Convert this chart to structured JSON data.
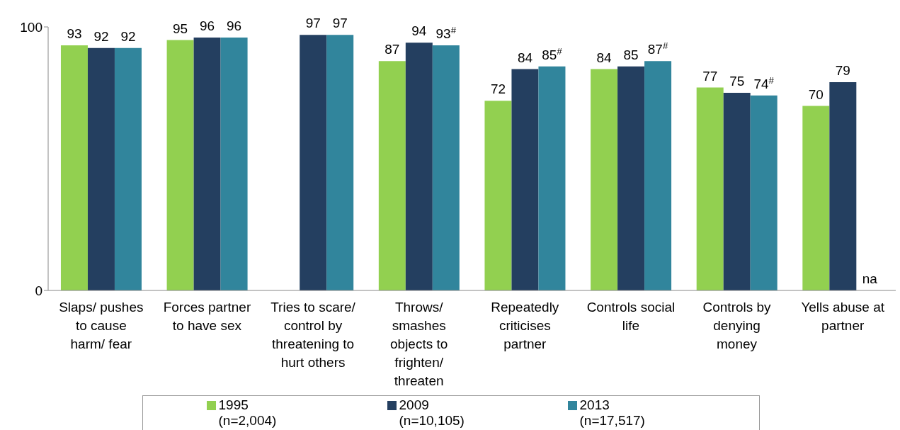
{
  "chart_data": {
    "type": "bar",
    "categories": [
      "Slaps/ pushes\nto cause\nharm/ fear",
      "Forces partner\nto have sex",
      "Tries to scare/\ncontrol by\nthreatening to\nhurt others",
      "Throws/\nsmashes\nobjects to\nfrighten/\nthreaten",
      "Repeatedly\ncriticises\npartner",
      "Controls social\nlife",
      "Controls by\ndenying\nmoney",
      "Yells abuse at\npartner"
    ],
    "series": [
      {
        "name": "1995\n(n=2,004)",
        "color": "#92d050",
        "values": [
          93,
          95,
          null,
          87,
          72,
          84,
          77,
          70
        ],
        "value_labels": [
          "93",
          "95",
          null,
          "87",
          "72",
          "84",
          "77",
          "70"
        ]
      },
      {
        "name": "2009\n(n=10,105)",
        "color": "#243f60",
        "values": [
          92,
          96,
          97,
          94,
          84,
          85,
          75,
          79
        ],
        "value_labels": [
          "92",
          "96",
          "97",
          "94",
          "84",
          "85",
          "75",
          "79"
        ]
      },
      {
        "name": "2013\n(n=17,517)",
        "color": "#31859c",
        "values": [
          92,
          96,
          97,
          93,
          85,
          87,
          74,
          null
        ],
        "value_labels": [
          "92",
          "96",
          "97",
          "93$^{#}$",
          "85$^{#}$",
          "87$^{#}$",
          "74$^{#}$",
          "na"
        ]
      }
    ],
    "ylim": [
      0,
      100
    ],
    "yticks": [
      0,
      100
    ],
    "grid": false,
    "legend": "bottom"
  }
}
